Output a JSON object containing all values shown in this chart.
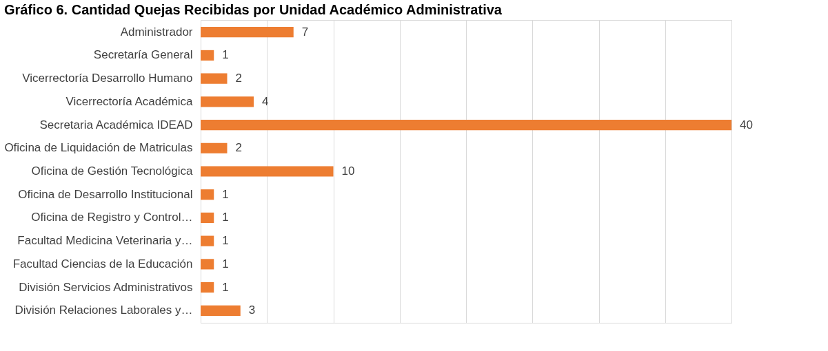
{
  "chart_data": {
    "type": "bar",
    "orientation": "horizontal",
    "title": "Gráfico 6. Cantidad Quejas Recibidas por Unidad Académico Administrativa",
    "categories": [
      "Administrador",
      "Secretaría General",
      "Vicerrectoría Desarrollo Humano",
      "Vicerrectoría Académica",
      "Secretaria Académica IDEAD",
      "Oficina de Liquidación de Matriculas",
      "Oficina de Gestión Tecnológica",
      "Oficina de Desarrollo Institucional",
      "Oficina de Registro y Control…",
      "Facultad Medicina Veterinaria y…",
      "Facultad Ciencias de la Educación",
      "División Servicios Administrativos",
      "División Relaciones Laborales y…"
    ],
    "values": [
      7,
      1,
      2,
      4,
      40,
      2,
      10,
      1,
      1,
      1,
      1,
      1,
      3
    ],
    "color": "#ed7d31",
    "xlim": [
      0,
      40
    ],
    "xticks": [
      {
        "value": 0,
        "label": null
      },
      {
        "value": 5,
        "label": null
      },
      {
        "value": 10,
        "label": null
      },
      {
        "value": 15,
        "label": null
      },
      {
        "value": 20,
        "label": null
      },
      {
        "value": 25,
        "label": null
      },
      {
        "value": 30,
        "label": null
      },
      {
        "value": 35,
        "label": null
      },
      {
        "value": 40,
        "label": null
      }
    ],
    "grid": "x",
    "tick_labels": "y",
    "data_labels": true
  }
}
